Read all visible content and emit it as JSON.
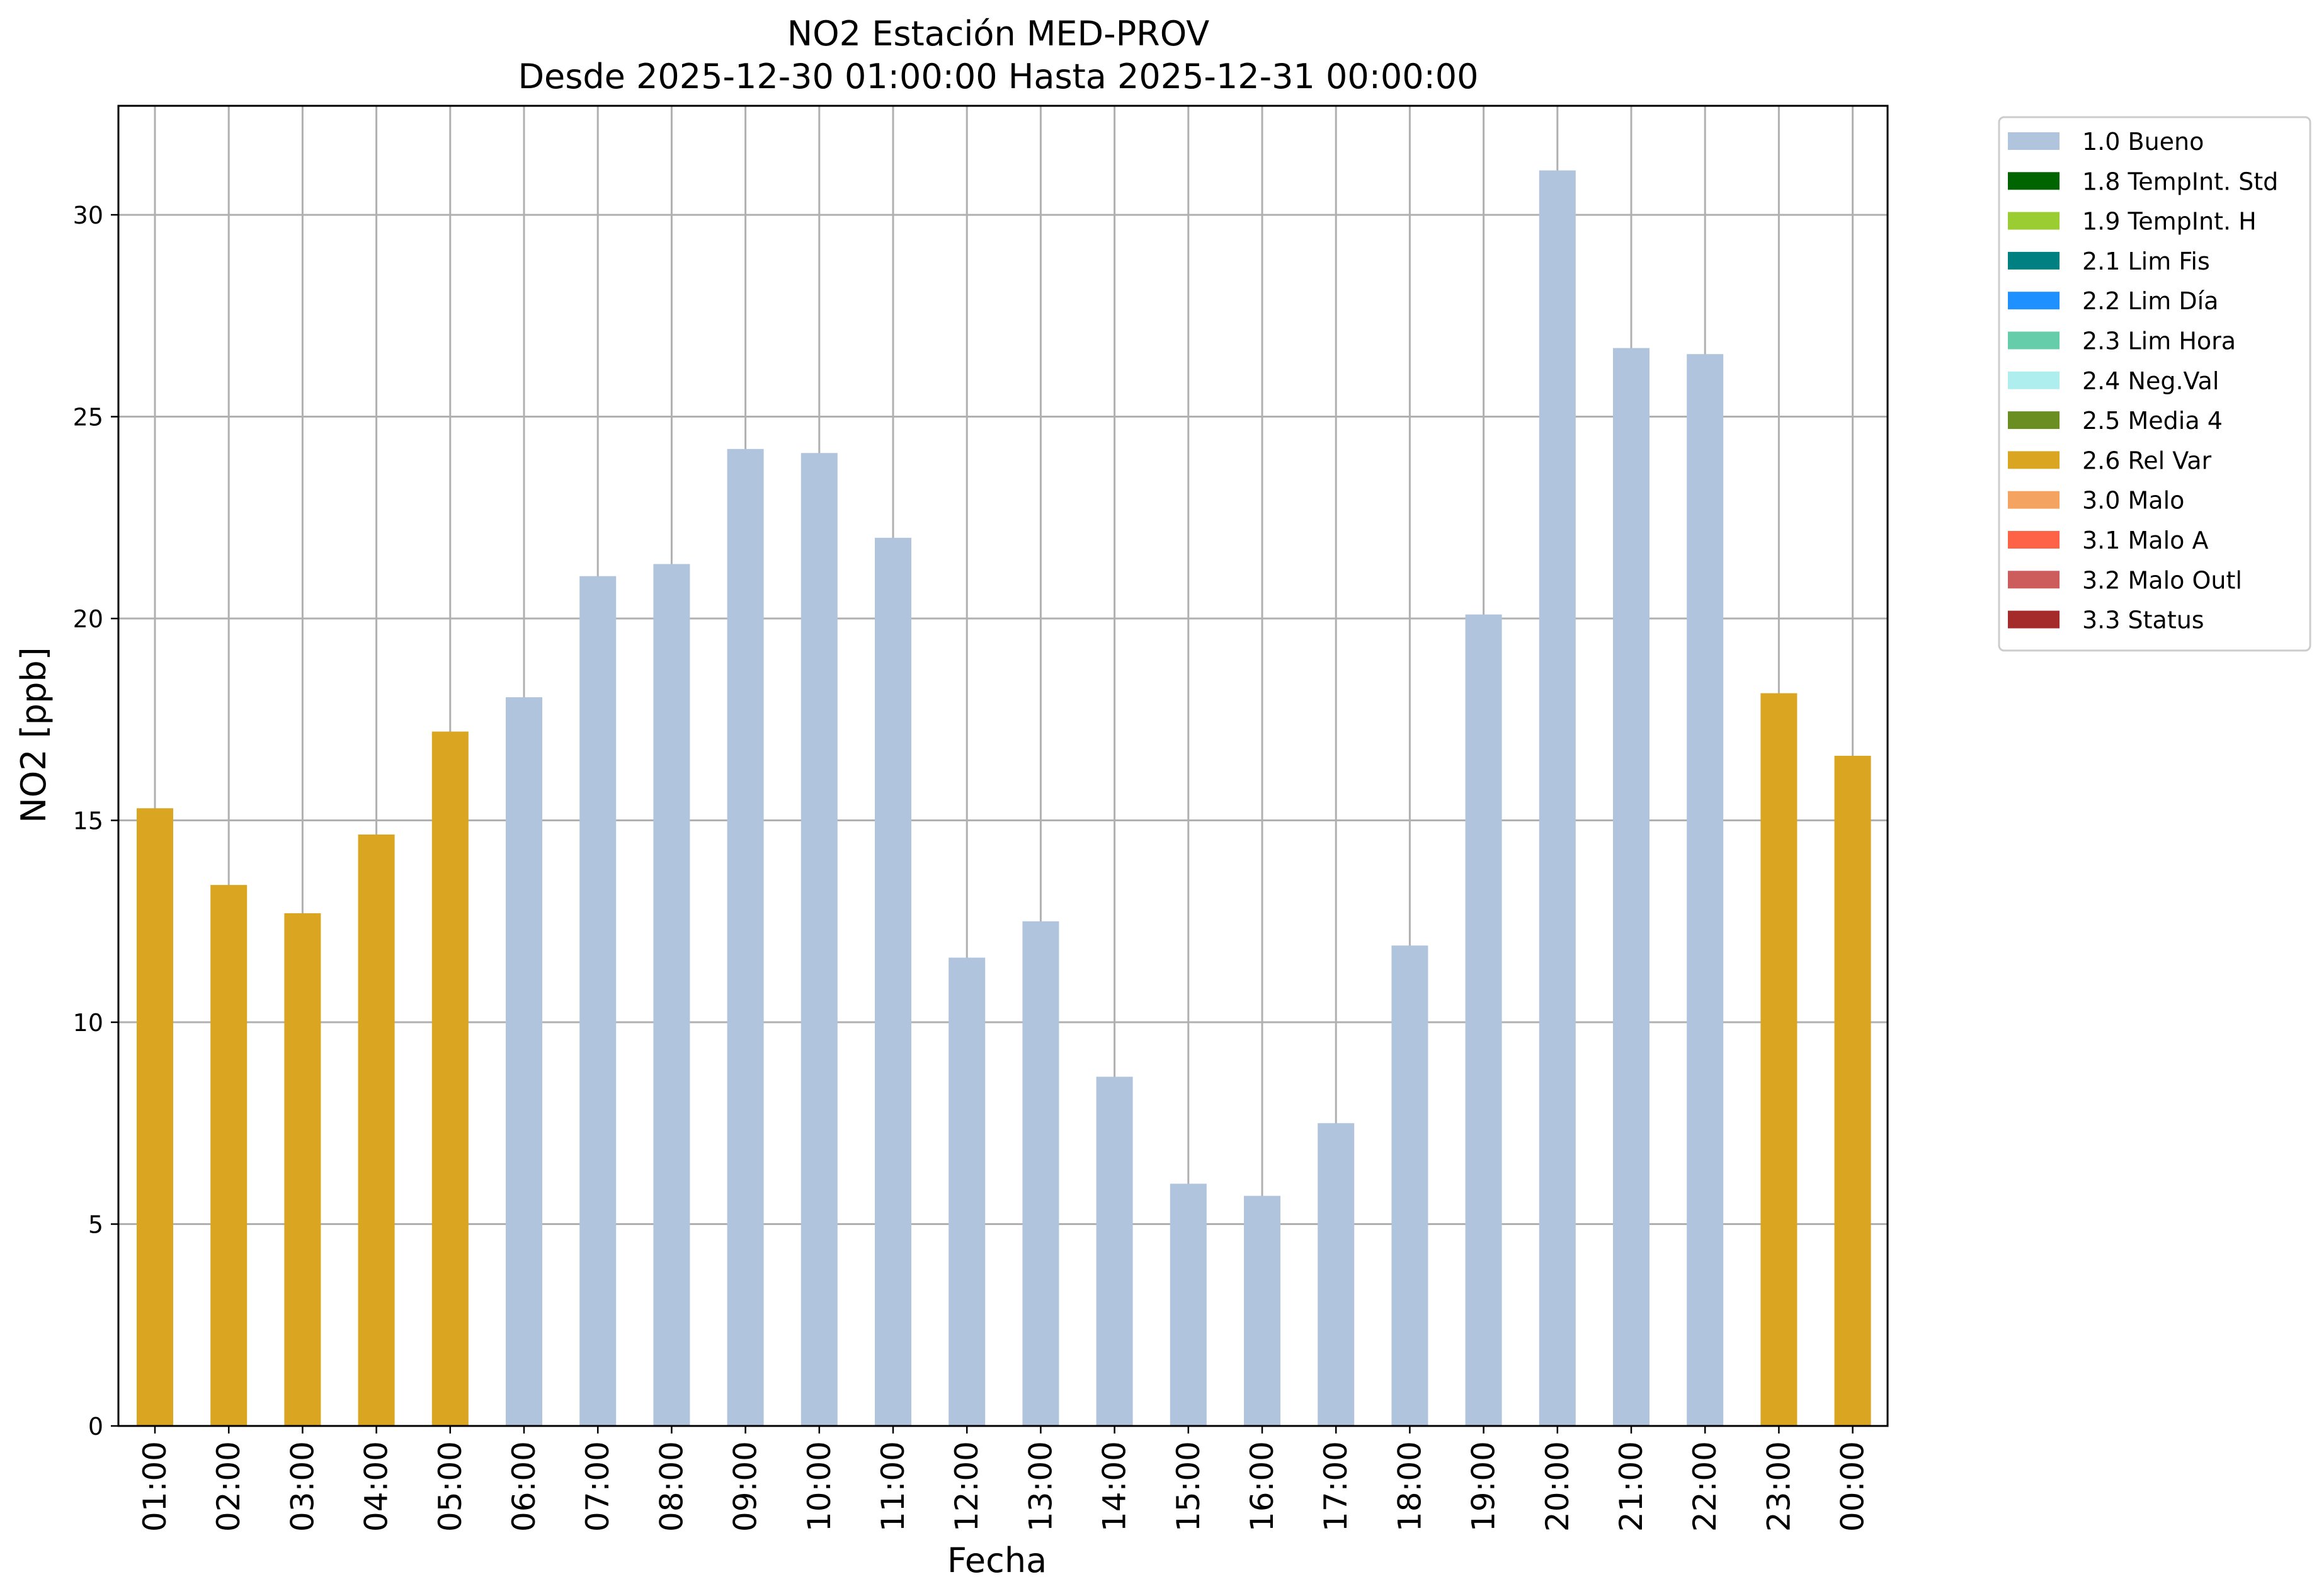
{
  "chart_data": {
    "type": "bar",
    "title_line1": "NO2 Estación MED-PROV",
    "title_line2": "Desde 2025-12-30 01:00:00 Hasta 2025-12-31 00:00:00",
    "xlabel": "Fecha",
    "ylabel": "NO2 [ppb]",
    "ylim": [
      0,
      32.7
    ],
    "yticks": [
      0,
      5,
      10,
      15,
      20,
      25,
      30
    ],
    "grid": true,
    "legend_placement": "outside-top-right",
    "categories": [
      "01:00",
      "02:00",
      "03:00",
      "04:00",
      "05:00",
      "06:00",
      "07:00",
      "08:00",
      "09:00",
      "10:00",
      "11:00",
      "12:00",
      "13:00",
      "14:00",
      "15:00",
      "16:00",
      "17:00",
      "18:00",
      "19:00",
      "20:00",
      "21:00",
      "22:00",
      "23:00",
      "00:00"
    ],
    "values": [
      15.3,
      13.4,
      12.7,
      14.65,
      17.2,
      18.05,
      21.05,
      21.35,
      24.2,
      24.1,
      22.0,
      11.6,
      12.5,
      8.65,
      6.0,
      5.7,
      7.5,
      11.9,
      20.1,
      31.1,
      26.7,
      26.55,
      18.15,
      16.6
    ],
    "flags": [
      "2.6 Rel Var",
      "2.6 Rel Var",
      "2.6 Rel Var",
      "2.6 Rel Var",
      "2.6 Rel Var",
      "1.0 Bueno",
      "1.0 Bueno",
      "1.0 Bueno",
      "1.0 Bueno",
      "1.0 Bueno",
      "1.0 Bueno",
      "1.0 Bueno",
      "1.0 Bueno",
      "1.0 Bueno",
      "1.0 Bueno",
      "1.0 Bueno",
      "1.0 Bueno",
      "1.0 Bueno",
      "1.0 Bueno",
      "1.0 Bueno",
      "1.0 Bueno",
      "1.0 Bueno",
      "2.6 Rel Var",
      "2.6 Rel Var"
    ],
    "legend": [
      {
        "label": "1.0 Bueno",
        "color": "#b0c4de"
      },
      {
        "label": "1.8 TempInt. Std",
        "color": "#006400"
      },
      {
        "label": "1.9 TempInt. H",
        "color": "#9acd32"
      },
      {
        "label": "2.1 Lim Fis",
        "color": "#008080"
      },
      {
        "label": "2.2 Lim Día",
        "color": "#1e90ff"
      },
      {
        "label": "2.3 Lim Hora",
        "color": "#66cdaa"
      },
      {
        "label": "2.4 Neg.Val",
        "color": "#afeeee"
      },
      {
        "label": "2.5 Media 4",
        "color": "#6b8e23"
      },
      {
        "label": "2.6 Rel Var",
        "color": "#daa520"
      },
      {
        "label": "3.0 Malo",
        "color": "#f4a460"
      },
      {
        "label": "3.1 Malo A",
        "color": "#ff6347"
      },
      {
        "label": "3.2 Malo Outl",
        "color": "#cd5c5c"
      },
      {
        "label": "3.3 Status",
        "color": "#a52a2a"
      }
    ]
  }
}
